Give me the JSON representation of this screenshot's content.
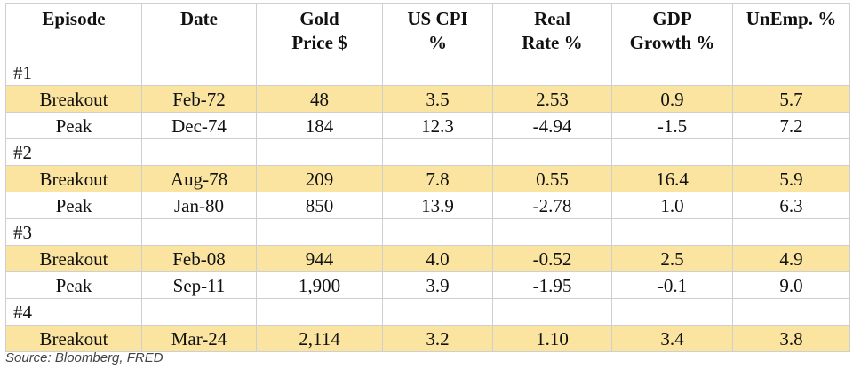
{
  "headers": [
    "Episode",
    "Date",
    "Gold Price $",
    "US CPI %",
    "Real Rate %",
    "GDP Growth %",
    "UnEmp. %"
  ],
  "header_lines": [
    [
      "Episode"
    ],
    [
      "Date"
    ],
    [
      "Gold",
      "Price $"
    ],
    [
      "US CPI",
      "%"
    ],
    [
      "Real",
      "Rate %"
    ],
    [
      "GDP",
      "Growth %"
    ],
    [
      "UnEmp. %"
    ]
  ],
  "rows": [
    {
      "kind": "episode",
      "label": "#1"
    },
    {
      "kind": "data",
      "highlight": true,
      "cells": [
        "Breakout",
        "Feb-72",
        "48",
        "3.5",
        "2.53",
        "0.9",
        "5.7"
      ]
    },
    {
      "kind": "data",
      "highlight": false,
      "cells": [
        "Peak",
        "Dec-74",
        "184",
        "12.3",
        "-4.94",
        "-1.5",
        "7.2"
      ]
    },
    {
      "kind": "episode",
      "label": "#2"
    },
    {
      "kind": "data",
      "highlight": true,
      "cells": [
        "Breakout",
        "Aug-78",
        "209",
        "7.8",
        "0.55",
        "16.4",
        "5.9"
      ]
    },
    {
      "kind": "data",
      "highlight": false,
      "cells": [
        "Peak",
        "Jan-80",
        "850",
        "13.9",
        "-2.78",
        "1.0",
        "6.3"
      ]
    },
    {
      "kind": "episode",
      "label": "#3"
    },
    {
      "kind": "data",
      "highlight": true,
      "cells": [
        "Breakout",
        "Feb-08",
        "944",
        "4.0",
        "-0.52",
        "2.5",
        "4.9"
      ]
    },
    {
      "kind": "data",
      "highlight": false,
      "cells": [
        "Peak",
        "Sep-11",
        "1,900",
        "3.9",
        "-1.95",
        "-0.1",
        "9.0"
      ]
    },
    {
      "kind": "episode",
      "label": "#4"
    },
    {
      "kind": "data",
      "highlight": true,
      "cells": [
        "Breakout",
        "Mar-24",
        "2,114",
        "3.2",
        "1.10",
        "3.4",
        "3.8"
      ]
    }
  ],
  "source": "Source: Bloomberg, FRED",
  "colors": {
    "highlight": "#fbe3a0",
    "border": "#cfcfcf"
  }
}
